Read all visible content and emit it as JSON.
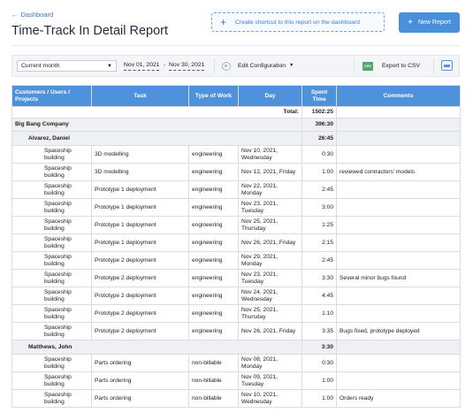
{
  "header": {
    "back_link": "Dashboard",
    "title": "Time-Track In Detail Report",
    "shortcut_button": "Create shortcut to this report on the dashboard",
    "new_report_button": "New Report"
  },
  "toolbar": {
    "period": "Current month",
    "date_from": "Nov 01, 2021",
    "date_separator": "-",
    "date_to": "Nov 30, 2021",
    "edit_configuration": "Edit Configuration",
    "export_csv": "Export to CSV",
    "csv_icon_text": "CSV"
  },
  "table": {
    "columns": [
      "Customers / Users / Projects",
      "Task",
      "Type of Work",
      "Day",
      "Spent Time",
      "Comments"
    ],
    "total_label": "Total:",
    "total_value": "1502:25",
    "company": {
      "name": "Big Bang Company",
      "time": "396:30"
    },
    "person1": {
      "name": "Alvarez, Daniel",
      "time": "26:45"
    },
    "person2": {
      "name": "Matthews, John",
      "time": "3:30"
    },
    "rows": [
      {
        "project": "Spaceship building",
        "task": "3D modelling",
        "type": "engineering",
        "day": "Nov 10, 2021, Wednesday",
        "time": "0:30",
        "comment": ""
      },
      {
        "project": "Spaceship building",
        "task": "3D modelling",
        "type": "engineering",
        "day": "Nov 12, 2021, Friday",
        "time": "1:00",
        "comment": "reviewed contractors' models"
      },
      {
        "project": "Spaceship building",
        "task": "Prototype 1 deployment",
        "type": "engineering",
        "day": "Nov 22, 2021, Monday",
        "time": "2:45",
        "comment": ""
      },
      {
        "project": "Spaceship building",
        "task": "Prototype 1 deployment",
        "type": "engineering",
        "day": "Nov 23, 2021, Tuesday",
        "time": "3:00",
        "comment": ""
      },
      {
        "project": "Spaceship building",
        "task": "Prototype 1 deployment",
        "type": "engineering",
        "day": "Nov 25, 2021, Thursday",
        "time": "1:25",
        "comment": ""
      },
      {
        "project": "Spaceship building",
        "task": "Prototype 1 deployment",
        "type": "engineering",
        "day": "Nov 26, 2021, Friday",
        "time": "2:15",
        "comment": ""
      },
      {
        "project": "Spaceship building",
        "task": "Prototype 2 deployment",
        "type": "engineering",
        "day": "Nov 29, 2021, Monday",
        "time": "2:45",
        "comment": ""
      },
      {
        "project": "Spaceship building",
        "task": "Prototype 2 deployment",
        "type": "engineering",
        "day": "Nov 23, 2021, Tuesday",
        "time": "3:30",
        "comment": "Several minor bugs found"
      },
      {
        "project": "Spaceship building",
        "task": "Prototype 2 deployment",
        "type": "engineering",
        "day": "Nov 24, 2021, Wednesday",
        "time": "4:45",
        "comment": ""
      },
      {
        "project": "Spaceship building",
        "task": "Prototype 2 deployment",
        "type": "engineering",
        "day": "Nov 25, 2021, Thursday",
        "time": "1:10",
        "comment": ""
      },
      {
        "project": "Spaceship building",
        "task": "Prototype 2 deployment",
        "type": "engineering",
        "day": "Nov 26, 2021, Friday",
        "time": "3:35",
        "comment": "Bugs fixed, prototype deployed"
      },
      {
        "project": "Spaceship building",
        "task": "Parts ordering",
        "type": "non-billable",
        "day": "Nov 08, 2021, Monday",
        "time": "0:30",
        "comment": ""
      },
      {
        "project": "Spaceship building",
        "task": "Parts ordering",
        "type": "non-billable",
        "day": "Nov 09, 2021, Tuesday",
        "time": "1:00",
        "comment": ""
      },
      {
        "project": "Spaceship building",
        "task": "Parts ordering",
        "type": "non-billable",
        "day": "Nov 10, 2021, Wednesday",
        "time": "1:00",
        "comment": "Orders ready"
      }
    ]
  }
}
